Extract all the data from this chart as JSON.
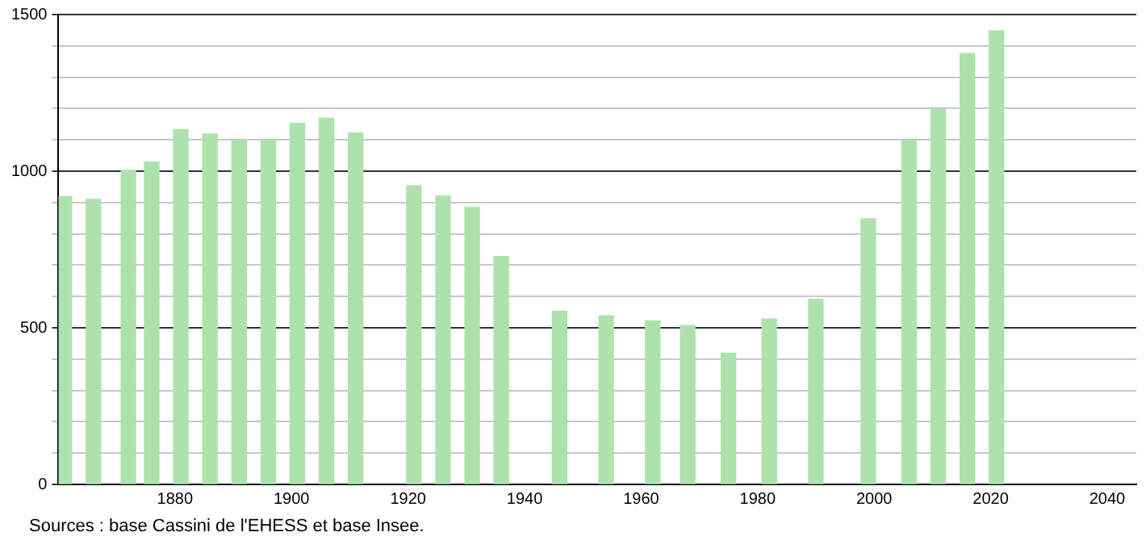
{
  "chart_data": {
    "type": "bar",
    "x": [
      1861,
      1866,
      1872,
      1876,
      1881,
      1886,
      1891,
      1896,
      1901,
      1906,
      1911,
      1921,
      1926,
      1931,
      1936,
      1946,
      1954,
      1962,
      1968,
      1975,
      1982,
      1990,
      1999,
      2006,
      2011,
      2016,
      2021
    ],
    "values": [
      919,
      910,
      1003,
      1029,
      1133,
      1119,
      1100,
      1100,
      1153,
      1169,
      1122,
      953,
      921,
      884,
      728,
      553,
      538,
      522,
      507,
      419,
      528,
      591,
      848,
      1100,
      1198,
      1376,
      1448
    ],
    "color": "#ace3ac",
    "xlim": [
      1860,
      2045
    ],
    "xticks": [
      1880,
      1900,
      1920,
      1940,
      1960,
      1980,
      2000,
      2020,
      2040
    ],
    "ylim": [
      0,
      1500
    ],
    "yticks": [
      0,
      {
        "value": 100,
        "label": null
      },
      {
        "value": 200,
        "label": null
      },
      {
        "value": 300,
        "label": null
      },
      {
        "value": 400,
        "label": null
      },
      500,
      {
        "value": 600,
        "label": null
      },
      {
        "value": 700,
        "label": null
      },
      {
        "value": 800,
        "label": null
      },
      {
        "value": 900,
        "label": null
      },
      1000,
      {
        "value": 1100,
        "label": null
      },
      {
        "value": 1200,
        "label": null
      },
      {
        "value": 1300,
        "label": null
      },
      {
        "value": 1400,
        "label": null
      },
      1500
    ],
    "grid": "y",
    "annotations": [
      "Sources : base Cassini de l'EHESS et base Insee."
    ]
  }
}
